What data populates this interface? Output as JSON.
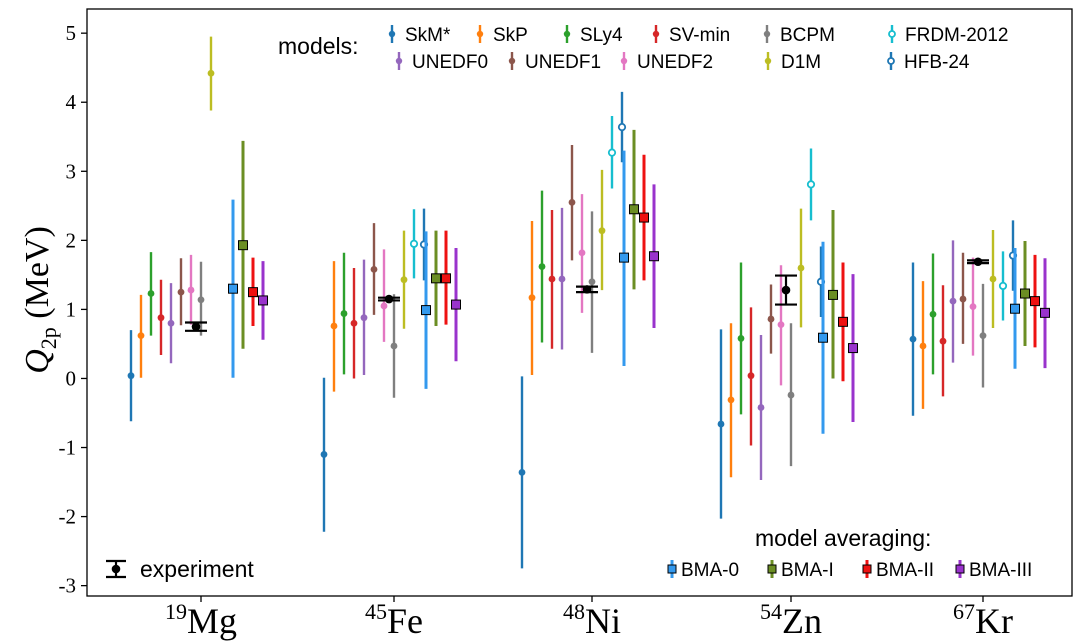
{
  "chart_data": {
    "type": "scatter",
    "title": "",
    "xlabel": "",
    "ylabel": "Q",
    "ylabel_sub": "2p",
    "ylabel_unit": " (MeV)",
    "ylim": [
      -3.15,
      5.35
    ],
    "yticks": [
      -3,
      -2,
      -1,
      0,
      1,
      2,
      3,
      4,
      5
    ],
    "grid": false,
    "nuclei": [
      {
        "mass": "19",
        "element": "Mg"
      },
      {
        "mass": "45",
        "element": "Fe"
      },
      {
        "mass": "48",
        "element": "Ni"
      },
      {
        "mass": "54",
        "element": "Zn"
      },
      {
        "mass": "67",
        "element": "Kr"
      }
    ],
    "models_legend_title": "models:",
    "model_averaging_legend_title": "model averaging:",
    "experiment_label": "experiment",
    "models": [
      {
        "name": "SkM*",
        "color": "#1f77b4",
        "marker": "dot",
        "values": [
          0.04,
          -1.1,
          -1.36,
          -0.66,
          0.57
        ],
        "errors": [
          [
            -0.62,
            0.7
          ],
          [
            -2.22,
            0.01
          ],
          [
            -2.75,
            0.03
          ],
          [
            -2.03,
            0.71
          ],
          [
            -0.54,
            1.68
          ]
        ]
      },
      {
        "name": "SkP",
        "color": "#ff7f0e",
        "marker": "dot",
        "values": [
          0.62,
          0.76,
          1.17,
          -0.31,
          0.47
        ],
        "errors": [
          [
            0.01,
            1.21
          ],
          [
            -0.19,
            1.7
          ],
          [
            0.05,
            2.28
          ],
          [
            -1.43,
            0.8
          ],
          [
            -0.44,
            1.41
          ]
        ]
      },
      {
        "name": "SLy4",
        "color": "#2ca02c",
        "marker": "dot",
        "values": [
          1.23,
          0.94,
          1.62,
          0.58,
          0.93
        ],
        "errors": [
          [
            0.62,
            1.83
          ],
          [
            0.06,
            1.82
          ],
          [
            0.52,
            2.72
          ],
          [
            -0.52,
            1.68
          ],
          [
            0.06,
            1.81
          ]
        ]
      },
      {
        "name": "SV-min",
        "color": "#d62728",
        "marker": "dot",
        "values": [
          0.88,
          0.8,
          1.44,
          0.04,
          0.54
        ],
        "errors": [
          [
            0.34,
            1.43
          ],
          [
            0.0,
            1.6
          ],
          [
            0.43,
            2.44
          ],
          [
            -0.97,
            1.03
          ],
          [
            -0.26,
            1.35
          ]
        ]
      },
      {
        "name": "UNEDF0",
        "color": "#9467bd",
        "marker": "dot",
        "values": [
          0.8,
          0.88,
          1.44,
          -0.42,
          1.12
        ],
        "errors": [
          [
            0.22,
            1.38
          ],
          [
            0.05,
            1.72
          ],
          [
            0.42,
            2.47
          ],
          [
            -1.47,
            0.63
          ],
          [
            0.23,
            2.0
          ]
        ]
      },
      {
        "name": "UNEDF1",
        "color": "#8c564b",
        "marker": "dot",
        "values": [
          1.25,
          1.58,
          2.55,
          0.86,
          1.15
        ],
        "errors": [
          [
            0.77,
            1.74
          ],
          [
            0.92,
            2.25
          ],
          [
            1.71,
            3.38
          ],
          [
            0.36,
            1.36
          ],
          [
            0.5,
            1.82
          ]
        ]
      },
      {
        "name": "UNEDF2",
        "color": "#e377c2",
        "marker": "dot",
        "values": [
          1.28,
          1.05,
          1.82,
          0.78,
          1.04
        ],
        "errors": [
          [
            0.78,
            1.79
          ],
          [
            0.53,
            1.87
          ],
          [
            0.95,
            2.67
          ],
          [
            -0.1,
            1.64
          ],
          [
            0.33,
            1.75
          ]
        ]
      },
      {
        "name": "BCPM",
        "color": "#7f7f7f",
        "marker": "dot",
        "values": [
          1.14,
          0.47,
          1.4,
          -0.24,
          0.62
        ],
        "errors": [
          [
            0.62,
            1.69
          ],
          [
            -0.28,
            1.22
          ],
          [
            0.37,
            2.42
          ],
          [
            -1.27,
            0.8
          ],
          [
            -0.13,
            1.37
          ]
        ]
      },
      {
        "name": "D1M",
        "color": "#bcbd22",
        "marker": "dot",
        "values": [
          4.42,
          1.43,
          2.14,
          1.6,
          1.44
        ],
        "errors": [
          [
            3.88,
            4.95
          ],
          [
            0.72,
            2.14
          ],
          [
            1.28,
            3.02
          ],
          [
            0.74,
            2.46
          ],
          [
            0.73,
            2.15
          ]
        ]
      },
      {
        "name": "FRDM-2012",
        "color": "#17becf",
        "marker": "open",
        "values": [
          null,
          1.95,
          3.27,
          2.81,
          1.34
        ],
        "errors": [
          null,
          [
            1.45,
            2.45
          ],
          [
            2.75,
            3.8
          ],
          [
            2.29,
            3.33
          ],
          [
            0.84,
            1.84
          ]
        ]
      },
      {
        "name": "HFB-24",
        "color": "#1f77b4",
        "marker": "open",
        "values": [
          null,
          1.94,
          3.64,
          1.4,
          1.78
        ],
        "errors": [
          null,
          [
            1.42,
            2.46
          ],
          [
            3.13,
            4.15
          ],
          [
            0.89,
            1.91
          ],
          [
            1.27,
            2.29
          ]
        ]
      }
    ],
    "experiment": {
      "label": "experiment",
      "values": [
        0.75,
        1.15,
        1.29,
        1.28,
        1.69
      ],
      "errors": [
        0.06,
        0.02,
        0.04,
        0.21,
        0.02
      ]
    },
    "averages": [
      {
        "name": "BMA-0",
        "color": "#3399ee",
        "values": [
          1.3,
          0.99,
          1.75,
          0.59,
          1.01
        ],
        "errors": [
          [
            0.01,
            2.59
          ],
          [
            -0.15,
            2.13
          ],
          [
            0.18,
            3.3
          ],
          [
            -0.8,
            1.98
          ],
          [
            0.14,
            1.89
          ]
        ]
      },
      {
        "name": "BMA-I",
        "color": "#6b8e23",
        "values": [
          1.93,
          1.45,
          2.45,
          1.21,
          1.23
        ],
        "errors": [
          [
            0.43,
            3.44
          ],
          [
            0.76,
            2.14
          ],
          [
            1.29,
            3.6
          ],
          [
            0.0,
            2.44
          ],
          [
            0.47,
            1.99
          ]
        ]
      },
      {
        "name": "BMA-II",
        "color": "#ee1111",
        "values": [
          1.25,
          1.45,
          2.33,
          0.82,
          1.12
        ],
        "errors": [
          [
            0.76,
            1.75
          ],
          [
            0.78,
            2.14
          ],
          [
            1.42,
            3.24
          ],
          [
            -0.04,
            1.68
          ],
          [
            0.45,
            1.79
          ]
        ]
      },
      {
        "name": "BMA-III",
        "color": "#9933cc",
        "values": [
          1.13,
          1.07,
          1.77,
          0.44,
          0.95
        ],
        "errors": [
          [
            0.56,
            1.7
          ],
          [
            0.25,
            1.89
          ],
          [
            0.73,
            2.81
          ],
          [
            -0.63,
            1.51
          ],
          [
            0.15,
            1.74
          ]
        ]
      }
    ]
  }
}
